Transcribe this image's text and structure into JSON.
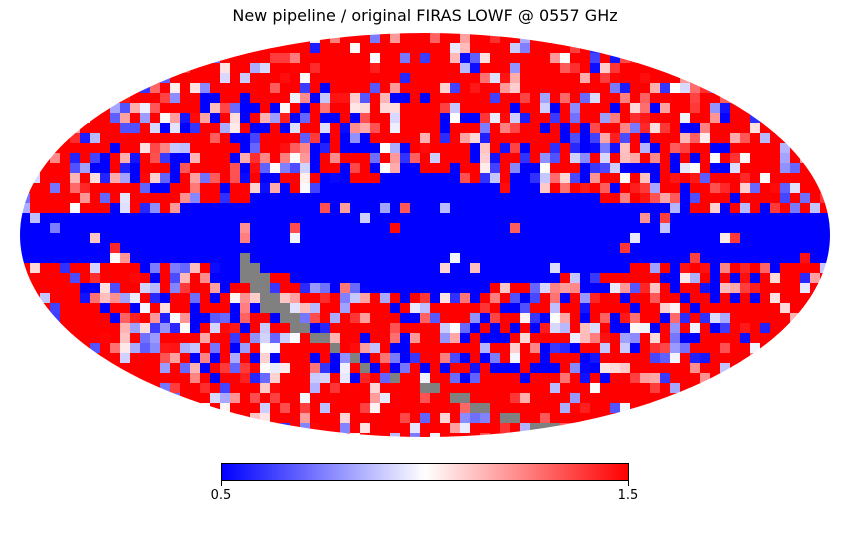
{
  "title": "New pipeline / original FIRAS LOWF @ 0557 GHz",
  "map": {
    "projection": "mollweide",
    "colormap": [
      "#0000ff",
      "#ffffff",
      "#ff0000"
    ],
    "missing_color": "#808080"
  },
  "colorbar": {
    "min": 0.5,
    "max": 1.5,
    "min_label": "0.5",
    "max_label": "1.5"
  }
}
